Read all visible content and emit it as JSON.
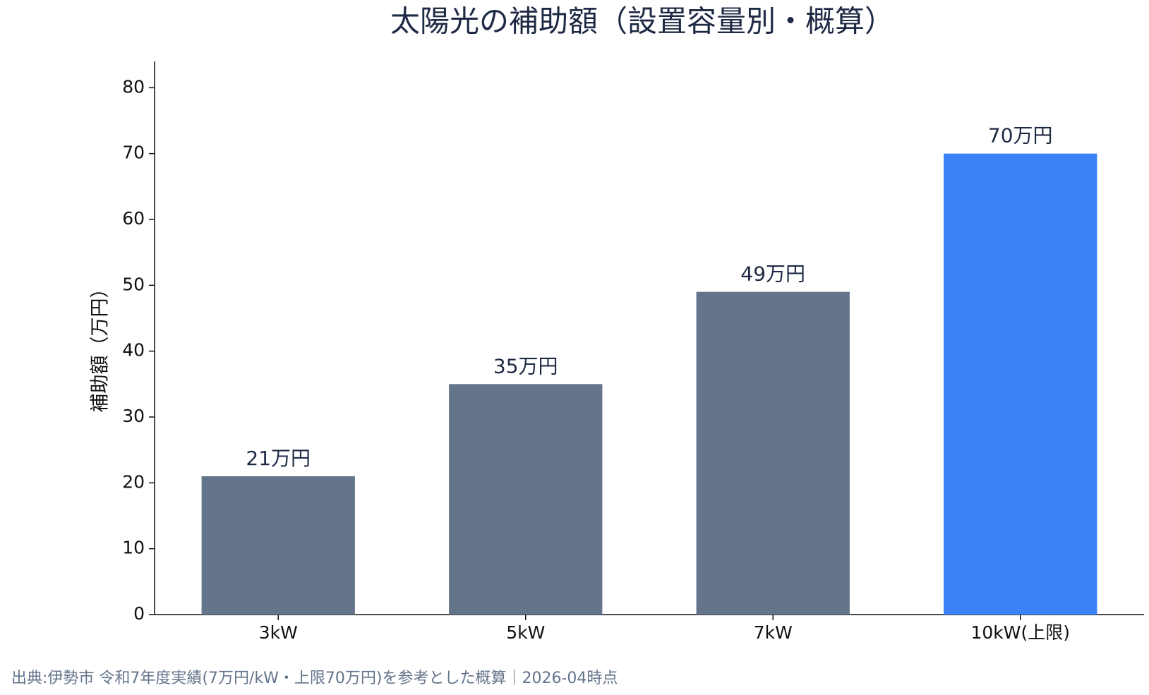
{
  "chart_data": {
    "type": "bar",
    "title": "太陽光の補助額（設置容量別・概算）",
    "ylabel": "補助額（万円）",
    "categories": [
      "3kW",
      "5kW",
      "7kW",
      "10kW(上限)"
    ],
    "values": [
      21,
      35,
      49,
      70
    ],
    "value_labels": [
      "21万円",
      "35万円",
      "49万円",
      "70万円"
    ],
    "colors": [
      "#64748b",
      "#64748b",
      "#64748b",
      "#3b82f6"
    ],
    "ylim": [
      0,
      84
    ],
    "yticks": [
      0,
      10,
      20,
      30,
      40,
      50,
      60,
      70,
      80
    ],
    "grid": false,
    "source": "出典:伊勢市 令和7年度実績(7万円/kW・上限70万円)を参考とした概算｜2026-04時点"
  }
}
